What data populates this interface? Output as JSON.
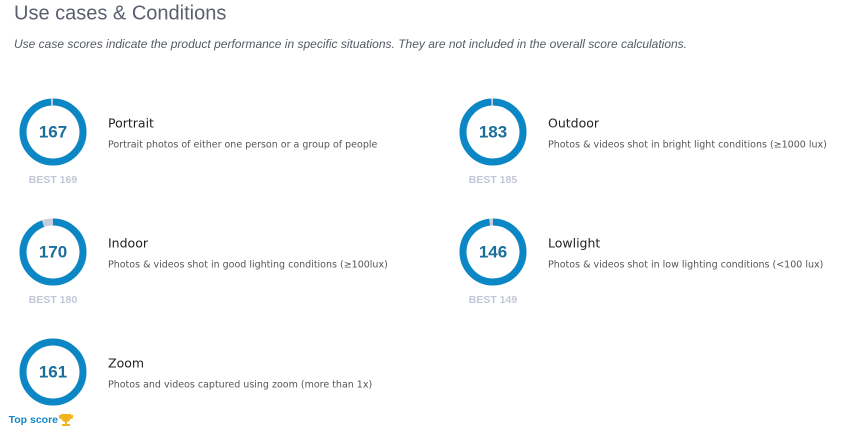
{
  "header": {
    "title": "Use cases & Conditions",
    "subtitle": "Use case scores indicate the product performance in specific situations. They are not included in the overall score calculations."
  },
  "items": [
    {
      "name": "Portrait",
      "description": "Portrait photos of either one person or a group of people",
      "score": 167,
      "best": 169,
      "best_label": "BEST 169"
    },
    {
      "name": "Outdoor",
      "description": "Photos & videos shot in bright light conditions (≥1000 lux)",
      "score": 183,
      "best": 185,
      "best_label": "BEST 185"
    },
    {
      "name": "Indoor",
      "description": "Photos & videos shot in good lighting conditions (≥100lux)",
      "score": 170,
      "best": 180,
      "best_label": "BEST 180"
    },
    {
      "name": "Lowlight",
      "description": "Photos & videos shot in low lighting conditions (<100 lux)",
      "score": 146,
      "best": 149,
      "best_label": "BEST 149"
    },
    {
      "name": "Zoom",
      "description": "Photos and videos captured using zoom (more than 1x)",
      "score": 161,
      "badge": "Top score"
    }
  ]
}
